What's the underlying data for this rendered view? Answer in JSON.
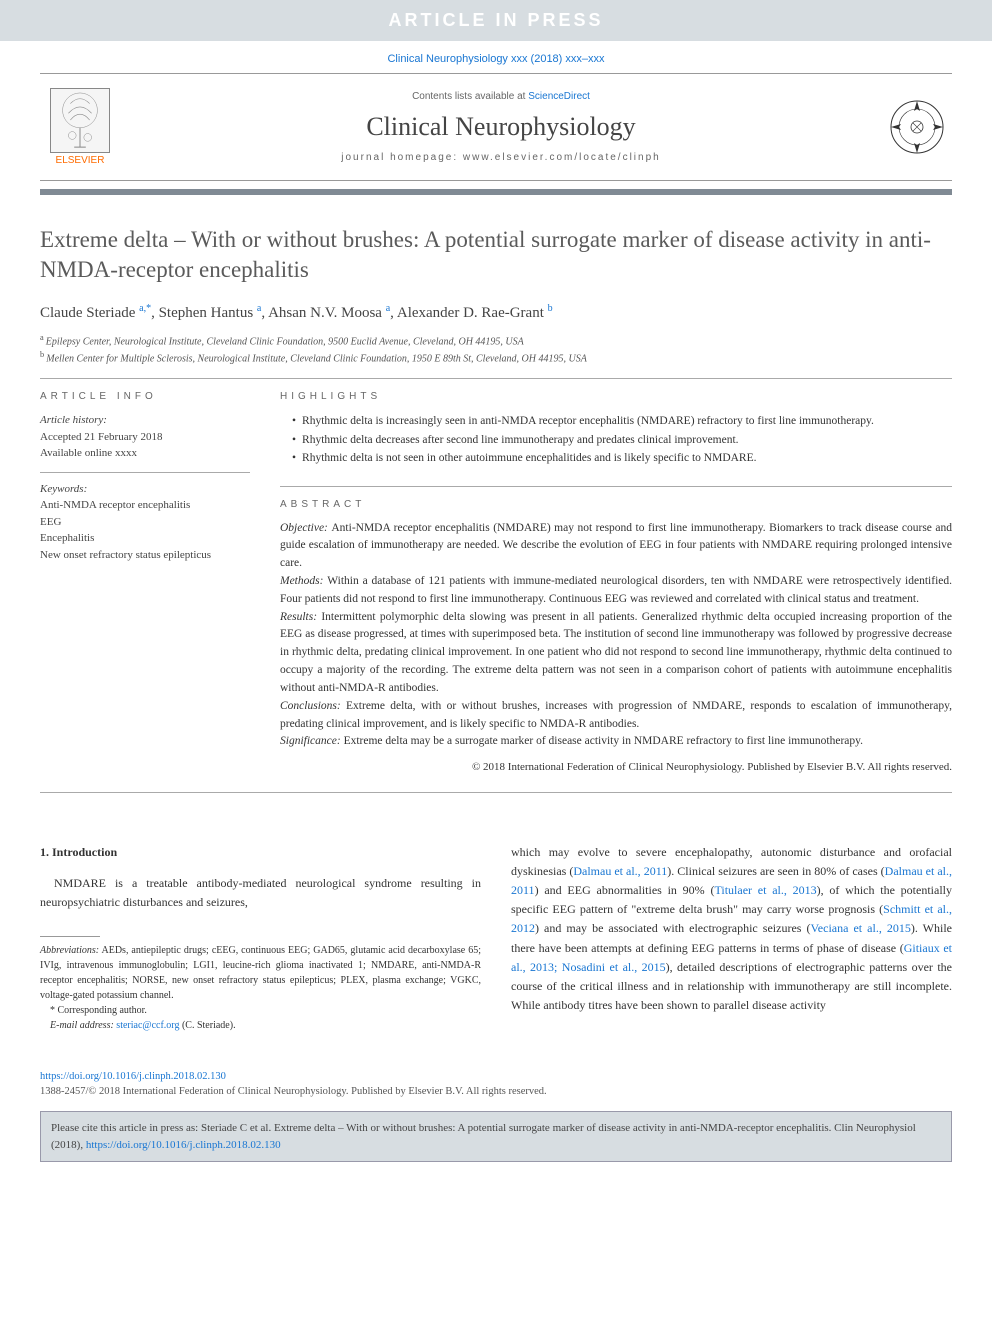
{
  "banner": "ARTICLE IN PRESS",
  "journal_ref": "Clinical Neurophysiology xxx (2018) xxx–xxx",
  "header": {
    "contents_prefix": "Contents lists available at ",
    "contents_link": "ScienceDirect",
    "journal_name": "Clinical Neurophysiology",
    "homepage": "journal homepage: www.elsevier.com/locate/clinph",
    "elsevier_label": "ELSEVIER"
  },
  "title": "Extreme delta – With or without brushes: A potential surrogate marker of disease activity in anti-NMDA-receptor encephalitis",
  "authors_html": "Claude Steriade",
  "authors": [
    {
      "name": "Claude Steriade",
      "sup": "a,*"
    },
    {
      "name": "Stephen Hantus",
      "sup": "a"
    },
    {
      "name": "Ahsan N.V. Moosa",
      "sup": "a"
    },
    {
      "name": "Alexander D. Rae-Grant",
      "sup": "b"
    }
  ],
  "affiliations": [
    {
      "sup": "a",
      "text": "Epilepsy Center, Neurological Institute, Cleveland Clinic Foundation, 9500 Euclid Avenue, Cleveland, OH 44195, USA"
    },
    {
      "sup": "b",
      "text": "Mellen Center for Multiple Sclerosis, Neurological Institute, Cleveland Clinic Foundation, 1950 E 89th St, Cleveland, OH 44195, USA"
    }
  ],
  "article_info": {
    "heading": "article info",
    "history_label": "Article history:",
    "accepted": "Accepted 21 February 2018",
    "available": "Available online xxxx",
    "keywords_label": "Keywords:",
    "keywords": [
      "Anti-NMDA receptor encephalitis",
      "EEG",
      "Encephalitis",
      "New onset refractory status epilepticus"
    ]
  },
  "highlights": {
    "heading": "highlights",
    "items": [
      "Rhythmic delta is increasingly seen in anti-NMDA receptor encephalitis (NMDARE) refractory to first line immunotherapy.",
      "Rhythmic delta decreases after second line immunotherapy and predates clinical improvement.",
      "Rhythmic delta is not seen in other autoimmune encephalitides and is likely specific to NMDARE."
    ]
  },
  "abstract": {
    "heading": "abstract",
    "objective": "Anti-NMDA receptor encephalitis (NMDARE) may not respond to first line immunotherapy. Biomarkers to track disease course and guide escalation of immunotherapy are needed. We describe the evolution of EEG in four patients with NMDARE requiring prolonged intensive care.",
    "methods": "Within a database of 121 patients with immune-mediated neurological disorders, ten with NMDARE were retrospectively identified. Four patients did not respond to first line immunotherapy. Continuous EEG was reviewed and correlated with clinical status and treatment.",
    "results": "Intermittent polymorphic delta slowing was present in all patients. Generalized rhythmic delta occupied increasing proportion of the EEG as disease progressed, at times with superimposed beta. The institution of second line immunotherapy was followed by progressive decrease in rhythmic delta, predating clinical improvement. In one patient who did not respond to second line immunotherapy, rhythmic delta continued to occupy a majority of the recording. The extreme delta pattern was not seen in a comparison cohort of patients with autoimmune encephalitis without anti-NMDA-R antibodies.",
    "conclusions": "Extreme delta, with or without brushes, increases with progression of NMDARE, responds to escalation of immunotherapy, predating clinical improvement, and is likely specific to NMDA-R antibodies.",
    "significance": "Extreme delta may be a surrogate marker of disease activity in NMDARE refractory to first line immunotherapy.",
    "copyright": "© 2018 International Federation of Clinical Neurophysiology. Published by Elsevier B.V. All rights reserved."
  },
  "intro": {
    "heading": "1. Introduction",
    "p1": "NMDARE is a treatable antibody-mediated neurological syndrome resulting in neuropsychiatric disturbances and seizures,",
    "p2_parts": [
      "which may evolve to severe encephalopathy, autonomic disturbance and orofacial dyskinesias (",
      "Dalmau et al., 2011",
      "). Clinical seizures are seen in 80% of cases (",
      "Dalmau et al., 2011",
      ") and EEG abnormalities in 90% (",
      "Titulaer et al., 2013",
      "), of which the potentially specific EEG pattern of \"extreme delta brush\" may carry worse prognosis (",
      "Schmitt et al., 2012",
      ") and may be associated with electrographic seizures (",
      "Veciana et al., 2015",
      "). While there have been attempts at defining EEG patterns in terms of phase of disease (",
      "Gitiaux et al., 2013; Nosadini et al., 2015",
      "), detailed descriptions of electrographic patterns over the course of the critical illness and in relationship with immunotherapy are still incomplete. While antibody titres have been shown to parallel disease activity"
    ]
  },
  "footnotes": {
    "abbrev_label": "Abbreviations:",
    "abbrev_text": "AEDs, antiepileptic drugs; cEEG, continuous EEG; GAD65, glutamic acid decarboxylase 65; IVIg, intravenous immunoglobulin; LGI1, leucine-rich glioma inactivated 1; NMDARE, anti-NMDA-R receptor encephalitis; NORSE, new onset refractory status epilepticus; PLEX, plasma exchange; VGKC, voltage-gated potassium channel.",
    "corr_label": "* Corresponding author.",
    "email_label": "E-mail address:",
    "email": "steriac@ccf.org",
    "email_suffix": "(C. Steriade)."
  },
  "doi": "https://doi.org/10.1016/j.clinph.2018.02.130",
  "issn": "1388-2457/© 2018 International Federation of Clinical Neurophysiology. Published by Elsevier B.V. All rights reserved.",
  "cite_box": {
    "prefix": "Please cite this article in press as: Steriade C et al. Extreme delta – With or without brushes: A potential surrogate marker of disease activity in anti-NMDA-receptor encephalitis. Clin Neurophysiol (2018), ",
    "link": "https://doi.org/10.1016/j.clinph.2018.02.130"
  },
  "colors": {
    "banner_bg": "#d7dde1",
    "link": "#1976d2",
    "divider": "#808a94",
    "elsevier_orange": "#ff6b00"
  }
}
